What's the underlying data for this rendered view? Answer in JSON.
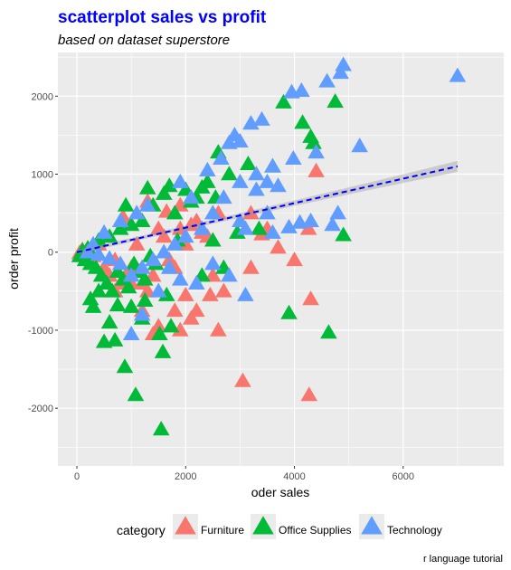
{
  "chart_data": {
    "type": "scatter",
    "title": "scatterplot sales vs profit",
    "subtitle": "based on dataset superstore",
    "xlabel": "oder sales",
    "ylabel": "order profit",
    "caption": "r language tutorial",
    "xlim": [
      -350,
      7850
    ],
    "ylim": [
      -2740,
      2560
    ],
    "x_ticks": [
      0,
      2000,
      4000,
      6000
    ],
    "y_ticks": [
      -2000,
      -1000,
      0,
      1000,
      2000
    ],
    "grid": true,
    "legend_position": "bottom",
    "legend_title": "category",
    "marker": "triangle",
    "trend_line": {
      "style": "dashed",
      "color": "#0000ff",
      "x": [
        0,
        7000
      ],
      "y": [
        0,
        1100
      ],
      "band": true
    },
    "colors": {
      "title": "#0000ff",
      "Furniture": "#f8766d",
      "Office Supplies": "#00ba38",
      "Technology": "#619cff",
      "panel": "#ebebeb",
      "grid": "#ffffff"
    },
    "series": [
      {
        "name": "Furniture",
        "points": [
          [
            3050,
            -1650
          ],
          [
            4270,
            -1830
          ],
          [
            4400,
            1040
          ],
          [
            4260,
            300
          ],
          [
            4300,
            -600
          ],
          [
            3400,
            230
          ],
          [
            3500,
            300
          ],
          [
            3700,
            60
          ],
          [
            4000,
            -100
          ],
          [
            3200,
            -200
          ],
          [
            2700,
            -500
          ],
          [
            2500,
            -300
          ],
          [
            2400,
            200
          ],
          [
            2200,
            400
          ],
          [
            2000,
            100
          ],
          [
            1900,
            300
          ],
          [
            1800,
            -200
          ],
          [
            1700,
            -100
          ],
          [
            1600,
            200
          ],
          [
            1500,
            300
          ],
          [
            1400,
            -300
          ],
          [
            1300,
            -500
          ],
          [
            1200,
            -400
          ],
          [
            1100,
            100
          ],
          [
            1000,
            -200
          ],
          [
            900,
            -300
          ],
          [
            800,
            -400
          ],
          [
            700,
            -100
          ],
          [
            600,
            -300
          ],
          [
            500,
            -200
          ],
          [
            400,
            100
          ],
          [
            300,
            -50
          ],
          [
            200,
            -30
          ],
          [
            100,
            30
          ],
          [
            50,
            -10
          ],
          [
            2000,
            -550
          ],
          [
            1800,
            -750
          ],
          [
            1500,
            -950
          ],
          [
            1900,
            -1000
          ],
          [
            1200,
            -750
          ],
          [
            2600,
            -1000
          ],
          [
            2200,
            -750
          ],
          [
            1900,
            600
          ],
          [
            1650,
            520
          ],
          [
            3200,
            500
          ],
          [
            2100,
            -850
          ],
          [
            1400,
            -1050
          ],
          [
            2300,
            250
          ],
          [
            2600,
            500
          ],
          [
            2450,
            -550
          ],
          [
            1000,
            -400
          ],
          [
            700,
            -500
          ],
          [
            1300,
            650
          ],
          [
            850,
            450
          ],
          [
            2100,
            350
          ]
        ]
      },
      {
        "name": "Office Supplies",
        "points": [
          [
            1550,
            -2270
          ],
          [
            1080,
            -1830
          ],
          [
            880,
            -1470
          ],
          [
            1580,
            -1280
          ],
          [
            1520,
            -1050
          ],
          [
            1730,
            -950
          ],
          [
            4630,
            -1030
          ],
          [
            3900,
            -780
          ],
          [
            1200,
            -850
          ],
          [
            1000,
            -700
          ],
          [
            500,
            -1150
          ],
          [
            700,
            -1130
          ],
          [
            300,
            -700
          ],
          [
            4750,
            1930
          ],
          [
            4150,
            1660
          ],
          [
            3800,
            1920
          ],
          [
            4300,
            1480
          ],
          [
            4350,
            1400
          ],
          [
            4900,
            220
          ],
          [
            3150,
            1130
          ],
          [
            2800,
            1000
          ],
          [
            2600,
            1280
          ],
          [
            2400,
            900
          ],
          [
            2200,
            700
          ],
          [
            2000,
            800
          ],
          [
            1800,
            500
          ],
          [
            1600,
            750
          ],
          [
            1400,
            600
          ],
          [
            1200,
            400
          ],
          [
            1000,
            350
          ],
          [
            800,
            300
          ],
          [
            600,
            200
          ],
          [
            400,
            150
          ],
          [
            300,
            100
          ],
          [
            200,
            50
          ],
          [
            100,
            20
          ],
          [
            50,
            -50
          ],
          [
            150,
            -100
          ],
          [
            250,
            -150
          ],
          [
            350,
            -200
          ],
          [
            450,
            -300
          ],
          [
            550,
            -400
          ],
          [
            650,
            -500
          ],
          [
            750,
            -250
          ],
          [
            850,
            -350
          ],
          [
            950,
            -450
          ],
          [
            1050,
            -150
          ],
          [
            1150,
            -250
          ],
          [
            1250,
            -350
          ],
          [
            1350,
            -50
          ],
          [
            1450,
            -150
          ],
          [
            2300,
            -300
          ],
          [
            2700,
            -200
          ],
          [
            1650,
            -550
          ],
          [
            1250,
            -620
          ],
          [
            1850,
            150
          ],
          [
            2500,
            150
          ],
          [
            2950,
            250
          ],
          [
            3350,
            300
          ],
          [
            1700,
            850
          ],
          [
            2100,
            650
          ],
          [
            900,
            600
          ],
          [
            400,
            -500
          ],
          [
            250,
            -600
          ],
          [
            2300,
            830
          ],
          [
            2550,
            700
          ],
          [
            1300,
            820
          ],
          [
            3600,
            1100
          ],
          [
            750,
            -680
          ],
          [
            600,
            -900
          ]
        ]
      },
      {
        "name": "Technology",
        "points": [
          [
            4900,
            2400
          ],
          [
            4850,
            2300
          ],
          [
            4600,
            2190
          ],
          [
            3950,
            2050
          ],
          [
            4130,
            2070
          ],
          [
            7000,
            2260
          ],
          [
            5200,
            1360
          ],
          [
            4400,
            1280
          ],
          [
            3980,
            1200
          ],
          [
            3600,
            1100
          ],
          [
            3400,
            1700
          ],
          [
            3000,
            1420
          ],
          [
            3200,
            1650
          ],
          [
            2900,
            1500
          ],
          [
            2800,
            1400
          ],
          [
            3300,
            800
          ],
          [
            3500,
            900
          ],
          [
            3000,
            900
          ],
          [
            2700,
            700
          ],
          [
            3000,
            400
          ],
          [
            3500,
            500
          ],
          [
            3100,
            300
          ],
          [
            4800,
            500
          ],
          [
            4700,
            350
          ],
          [
            4300,
            400
          ],
          [
            4100,
            380
          ],
          [
            3900,
            320
          ],
          [
            3600,
            250
          ],
          [
            2500,
            500
          ],
          [
            2300,
            300
          ],
          [
            2000,
            200
          ],
          [
            1800,
            100
          ],
          [
            1600,
            0
          ],
          [
            1400,
            -100
          ],
          [
            1200,
            -200
          ],
          [
            1000,
            -300
          ],
          [
            800,
            -150
          ],
          [
            600,
            -80
          ],
          [
            400,
            -30
          ],
          [
            200,
            0
          ],
          [
            1900,
            900
          ],
          [
            2100,
            700
          ],
          [
            3100,
            -550
          ],
          [
            2800,
            -300
          ],
          [
            2500,
            -150
          ],
          [
            2200,
            -400
          ],
          [
            1900,
            -350
          ],
          [
            1700,
            -200
          ],
          [
            1300,
            600
          ],
          [
            1100,
            500
          ],
          [
            800,
            400
          ],
          [
            500,
            250
          ],
          [
            300,
            100
          ],
          [
            1500,
            -500
          ],
          [
            1200,
            -800
          ],
          [
            1000,
            -1050
          ],
          [
            3300,
            1000
          ],
          [
            2650,
            1200
          ],
          [
            3700,
            850
          ],
          [
            2400,
            1050
          ]
        ]
      }
    ]
  }
}
